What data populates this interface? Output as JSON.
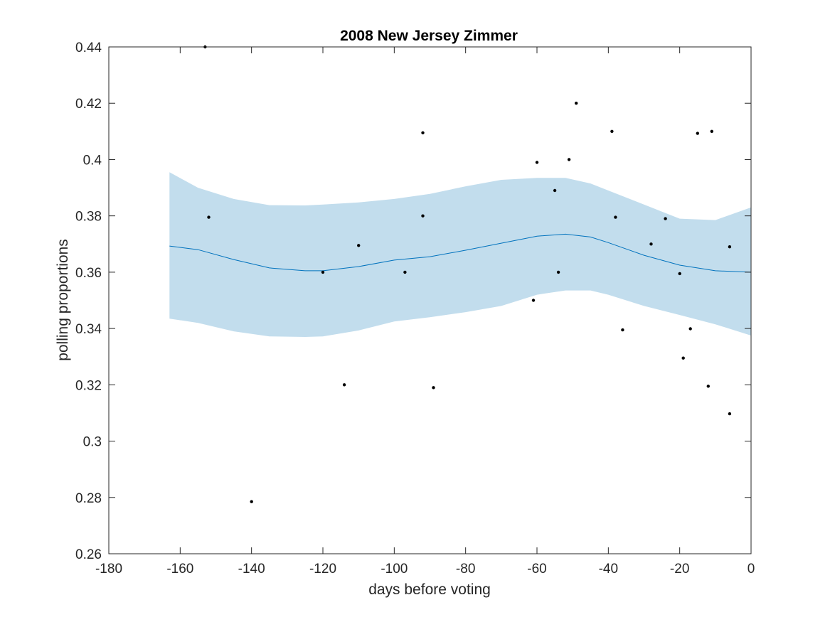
{
  "chart_data": {
    "type": "scatter",
    "title": "2008 New Jersey Zimmer",
    "xlabel": "days before voting",
    "ylabel": "polling proportions",
    "xlim": [
      -180,
      0
    ],
    "ylim": [
      0.26,
      0.44
    ],
    "xticks": [
      -180,
      -160,
      -140,
      -120,
      -100,
      -80,
      -60,
      -40,
      -20,
      0
    ],
    "xtick_labels": [
      "-180",
      "-160",
      "-140",
      "-120",
      "-100",
      "-80",
      "-60",
      "-40",
      "-20",
      "0"
    ],
    "yticks": [
      0.26,
      0.28,
      0.3,
      0.32,
      0.34,
      0.36,
      0.38,
      0.4,
      0.42,
      0.44
    ],
    "ytick_labels": [
      "0.26",
      "0.28",
      "0.3",
      "0.32",
      "0.34",
      "0.36",
      "0.38",
      "0.4",
      "0.42",
      "0.44"
    ],
    "grid": false,
    "colors": {
      "band": "#c2dded",
      "trend": "#0072bd",
      "points": "#000000",
      "axes": "#262626"
    },
    "points": [
      {
        "x": -153,
        "y": 0.44
      },
      {
        "x": -152,
        "y": 0.3795
      },
      {
        "x": -140,
        "y": 0.2785
      },
      {
        "x": -120,
        "y": 0.36
      },
      {
        "x": -114,
        "y": 0.32
      },
      {
        "x": -110,
        "y": 0.3695
      },
      {
        "x": -97,
        "y": 0.36
      },
      {
        "x": -92,
        "y": 0.4095
      },
      {
        "x": -92,
        "y": 0.38
      },
      {
        "x": -89,
        "y": 0.319
      },
      {
        "x": -61,
        "y": 0.35
      },
      {
        "x": -60,
        "y": 0.399
      },
      {
        "x": -55,
        "y": 0.389
      },
      {
        "x": -54,
        "y": 0.36
      },
      {
        "x": -51,
        "y": 0.4
      },
      {
        "x": -49,
        "y": 0.42
      },
      {
        "x": -39,
        "y": 0.41
      },
      {
        "x": -38,
        "y": 0.3795
      },
      {
        "x": -36,
        "y": 0.3395
      },
      {
        "x": -28,
        "y": 0.37
      },
      {
        "x": -24,
        "y": 0.379
      },
      {
        "x": -20,
        "y": 0.3595
      },
      {
        "x": -19,
        "y": 0.3295
      },
      {
        "x": -17,
        "y": 0.3399
      },
      {
        "x": -15,
        "y": 0.4093
      },
      {
        "x": -12,
        "y": 0.3195
      },
      {
        "x": -11,
        "y": 0.41
      },
      {
        "x": -6,
        "y": 0.369
      },
      {
        "x": -6,
        "y": 0.3097
      }
    ],
    "trend": {
      "x": [
        -163,
        -155,
        -145,
        -135,
        -125,
        -120,
        -110,
        -100,
        -90,
        -80,
        -70,
        -60,
        -52,
        -45,
        -40,
        -30,
        -20,
        -10,
        0
      ],
      "mean": [
        0.3693,
        0.368,
        0.3645,
        0.3615,
        0.3605,
        0.3605,
        0.362,
        0.3643,
        0.3655,
        0.3678,
        0.3703,
        0.3728,
        0.3735,
        0.3725,
        0.3705,
        0.366,
        0.3625,
        0.3605,
        0.36
      ],
      "upper": [
        0.3955,
        0.39,
        0.386,
        0.3838,
        0.3837,
        0.384,
        0.3848,
        0.386,
        0.3878,
        0.3905,
        0.3928,
        0.3935,
        0.3935,
        0.3915,
        0.389,
        0.384,
        0.379,
        0.3785,
        0.383
      ],
      "lower": [
        0.3435,
        0.342,
        0.339,
        0.3372,
        0.337,
        0.3372,
        0.3393,
        0.3425,
        0.344,
        0.3458,
        0.348,
        0.352,
        0.3535,
        0.3535,
        0.352,
        0.348,
        0.3448,
        0.3415,
        0.3375
      ]
    }
  }
}
